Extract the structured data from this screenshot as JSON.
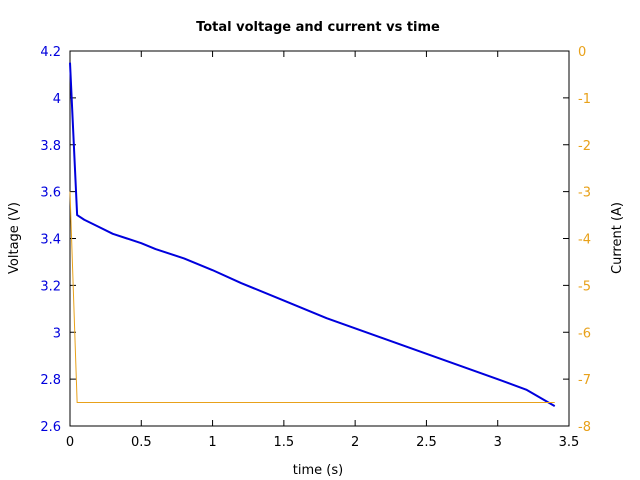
{
  "chart_data": {
    "type": "line",
    "title": "Total voltage and current vs time",
    "xlabel": "time (s)",
    "ylabel_left": "Voltage (V)",
    "ylabel_right": "Current (A)",
    "xlim": [
      0,
      3.5
    ],
    "ylim_left": [
      2.6,
      4.2
    ],
    "ylim_right": [
      -8,
      0
    ],
    "x_ticks": [
      "0",
      "0.5",
      "1",
      "1.5",
      "2",
      "2.5",
      "3",
      "3.5"
    ],
    "y_ticks_left": [
      "2.6",
      "2.8",
      "3",
      "3.2",
      "3.4",
      "3.6",
      "3.8",
      "4",
      "4.2"
    ],
    "y_ticks_right": [
      "-8",
      "-7",
      "-6",
      "-5",
      "-4",
      "-3",
      "-2",
      "-1",
      "0"
    ],
    "grid": false,
    "series": [
      {
        "axis": "left",
        "color": "#0000dd",
        "x": [
          0,
          0.05,
          0.1,
          0.15,
          0.2,
          0.3,
          0.4,
          0.5,
          0.6,
          0.8,
          1.0,
          1.2,
          1.5,
          1.8,
          2.1,
          2.4,
          2.7,
          3.0,
          3.2,
          3.4
        ],
        "y": [
          4.15,
          3.5,
          3.48,
          3.465,
          3.45,
          3.42,
          3.4,
          3.38,
          3.355,
          3.315,
          3.265,
          3.21,
          3.135,
          3.06,
          2.995,
          2.93,
          2.865,
          2.8,
          2.755,
          2.685
        ]
      },
      {
        "axis": "right",
        "color": "#e8a11a",
        "x": [
          0,
          0.05,
          3.4
        ],
        "y": [
          -3.0,
          -7.5,
          -7.5
        ]
      }
    ]
  },
  "colors": {
    "left_axis": "#0000dd",
    "right_axis": "#e8a11a",
    "frame": "#000000"
  }
}
